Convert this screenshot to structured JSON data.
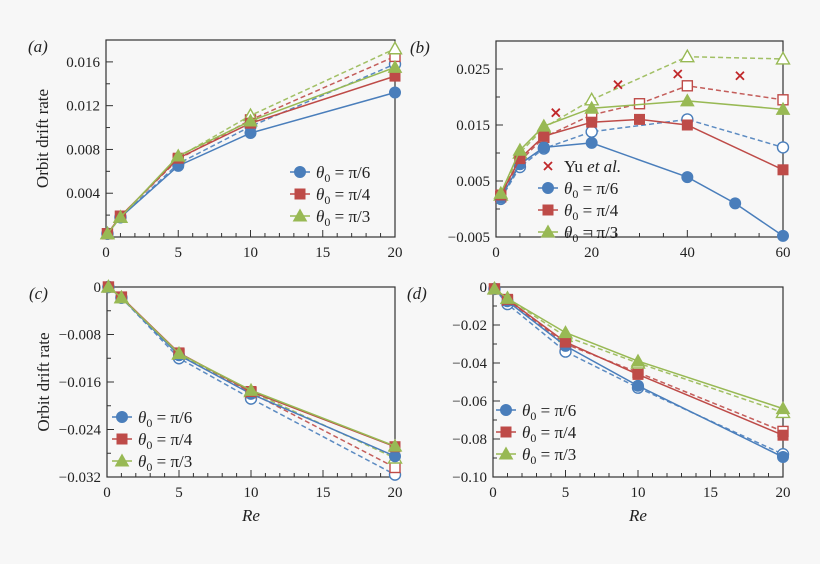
{
  "chart_data": [
    {
      "type": "line",
      "panel_label": "(a)",
      "ylabel": "Orbit drift rate",
      "xlabel": "",
      "xlim": [
        0,
        20
      ],
      "ylim": [
        0,
        0.018
      ],
      "xticks": [
        0,
        5,
        10,
        15,
        20
      ],
      "xtick_labels": [
        "0",
        "5",
        "10",
        "15",
        "20"
      ],
      "xminor": 1,
      "yticks": [
        0.004,
        0.008,
        0.012,
        0.016
      ],
      "ytick_labels": [
        "0.004",
        "0.008",
        "0.012",
        "0.016"
      ],
      "yminor": 0.002,
      "legend_position": "lower-right",
      "series": [
        {
          "theta": "pi6",
          "style": "dashed-open",
          "x": [
            0.1,
            1,
            5,
            10,
            20
          ],
          "y": [
            0.0003,
            0.0018,
            0.0067,
            0.0101,
            0.0158
          ]
        },
        {
          "theta": "pi4",
          "style": "dashed-open",
          "x": [
            0.1,
            1,
            5,
            10,
            20
          ],
          "y": [
            0.0003,
            0.0019,
            0.0071,
            0.0107,
            0.0165
          ]
        },
        {
          "theta": "pi3",
          "style": "dashed-open",
          "x": [
            0.1,
            1,
            5,
            10,
            20
          ],
          "y": [
            0.0003,
            0.0018,
            0.0073,
            0.0111,
            0.0172
          ]
        },
        {
          "theta": "pi6",
          "style": "solid-filled",
          "x": [
            0.1,
            1,
            5,
            10,
            20
          ],
          "y": [
            0.0003,
            0.0018,
            0.0065,
            0.0095,
            0.0132
          ]
        },
        {
          "theta": "pi4",
          "style": "solid-filled",
          "x": [
            0.1,
            1,
            5,
            10,
            20
          ],
          "y": [
            0.0003,
            0.0019,
            0.0072,
            0.0104,
            0.0147
          ]
        },
        {
          "theta": "pi3",
          "style": "solid-filled",
          "x": [
            0.1,
            1,
            5,
            10,
            20
          ],
          "y": [
            0.0003,
            0.0018,
            0.0074,
            0.0106,
            0.0155
          ]
        }
      ],
      "legend": [
        "pi6",
        "pi4",
        "pi3"
      ]
    },
    {
      "type": "line",
      "panel_label": "(b)",
      "ylabel": "",
      "xlabel": "",
      "xlim": [
        0,
        60
      ],
      "ylim": [
        -0.005,
        0.03
      ],
      "xticks": [
        0,
        20,
        40,
        60
      ],
      "xtick_labels": [
        "0",
        "20",
        "40",
        "60"
      ],
      "xminor": 5,
      "yticks": [
        -0.005,
        0.005,
        0.015,
        0.025
      ],
      "ytick_labels": [
        "−0.005",
        "0.005",
        "0.015",
        "0.025"
      ],
      "yminor": 0.005,
      "legend_position": "lower-left",
      "series": [
        {
          "theta": "pi6",
          "style": "dashed-open",
          "x": [
            1,
            5,
            10,
            20,
            40,
            60
          ],
          "y": [
            0.0018,
            0.0075,
            0.0108,
            0.0138,
            0.016,
            0.011
          ]
        },
        {
          "theta": "pi4",
          "style": "dashed-open",
          "x": [
            1,
            5,
            10,
            20,
            30,
            40,
            60
          ],
          "y": [
            0.0022,
            0.0085,
            0.0128,
            0.0168,
            0.0188,
            0.022,
            0.0195
          ]
        },
        {
          "theta": "pi3",
          "style": "dashed-open",
          "x": [
            1,
            5,
            10,
            20,
            40,
            60
          ],
          "y": [
            0.0025,
            0.01,
            0.0145,
            0.0195,
            0.0272,
            0.0268
          ]
        },
        {
          "theta": "pi6",
          "style": "solid-filled",
          "x": [
            1,
            5,
            10,
            20,
            40,
            50,
            60
          ],
          "y": [
            0.002,
            0.008,
            0.011,
            0.0118,
            0.0057,
            0.001,
            -0.0048
          ]
        },
        {
          "theta": "pi4",
          "style": "solid-filled",
          "x": [
            1,
            5,
            10,
            20,
            30,
            40,
            60
          ],
          "y": [
            0.0025,
            0.009,
            0.013,
            0.0155,
            0.016,
            0.015,
            0.007
          ]
        },
        {
          "theta": "pi3",
          "style": "solid-filled",
          "x": [
            1,
            5,
            10,
            20,
            40,
            60
          ],
          "y": [
            0.0028,
            0.0105,
            0.0148,
            0.018,
            0.0193,
            0.0178
          ]
        },
        {
          "theta": "yu",
          "style": "cross",
          "x": [
            12.5,
            25.5,
            38,
            51
          ],
          "y": [
            0.0172,
            0.0222,
            0.0241,
            0.0238
          ]
        }
      ],
      "legend": [
        "yu",
        "pi6",
        "pi4",
        "pi3"
      ]
    },
    {
      "type": "line",
      "panel_label": "(c)",
      "ylabel": "Orbit drift rate",
      "xlabel": "Re",
      "xlim": [
        0,
        20
      ],
      "ylim": [
        -0.032,
        0
      ],
      "xticks": [
        0,
        5,
        10,
        15,
        20
      ],
      "xtick_labels": [
        "0",
        "5",
        "10",
        "15",
        "20"
      ],
      "xminor": 1,
      "yticks": [
        -0.032,
        -0.024,
        -0.016,
        -0.008,
        0
      ],
      "ytick_labels": [
        "−0.032",
        "−0.024",
        "−0.016",
        "−0.008",
        "0"
      ],
      "yminor": 0.004,
      "legend_position": "lower-left",
      "series": [
        {
          "theta": "pi6",
          "style": "dashed-open",
          "x": [
            0.1,
            1,
            5,
            10,
            20
          ],
          "y": [
            0,
            -0.0018,
            -0.012,
            -0.0188,
            -0.0316
          ]
        },
        {
          "theta": "pi4",
          "style": "dashed-open",
          "x": [
            0.1,
            1,
            5,
            10,
            20
          ],
          "y": [
            0,
            -0.0017,
            -0.0113,
            -0.0178,
            -0.0304
          ]
        },
        {
          "theta": "pi3",
          "style": "dashed-open",
          "x": [
            0.1,
            1,
            5,
            10,
            20
          ],
          "y": [
            0,
            -0.0018,
            -0.0113,
            -0.0176,
            -0.0288
          ]
        },
        {
          "theta": "pi6",
          "style": "solid-filled",
          "x": [
            0.1,
            1,
            5,
            10,
            20
          ],
          "y": [
            0,
            -0.0018,
            -0.0115,
            -0.018,
            -0.0285
          ]
        },
        {
          "theta": "pi4",
          "style": "solid-filled",
          "x": [
            0.1,
            1,
            5,
            10,
            20
          ],
          "y": [
            0,
            -0.0017,
            -0.0111,
            -0.0176,
            -0.0269
          ]
        },
        {
          "theta": "pi3",
          "style": "solid-filled",
          "x": [
            0.1,
            1,
            5,
            10,
            20
          ],
          "y": [
            0,
            -0.0018,
            -0.0112,
            -0.0174,
            -0.0268
          ]
        }
      ],
      "legend": [
        "pi6",
        "pi4",
        "pi3"
      ]
    },
    {
      "type": "line",
      "panel_label": "(d)",
      "ylabel": "",
      "xlabel": "Re",
      "xlim": [
        0,
        20
      ],
      "ylim": [
        -0.1,
        0
      ],
      "xticks": [
        0,
        5,
        10,
        15,
        20
      ],
      "xtick_labels": [
        "0",
        "5",
        "10",
        "15",
        "20"
      ],
      "xminor": 1,
      "yticks": [
        -0.1,
        -0.08,
        -0.06,
        -0.04,
        -0.02,
        0
      ],
      "ytick_labels": [
        "−0.10",
        "−0.08",
        "−0.06",
        "−0.04",
        "−0.02",
        "0"
      ],
      "yminor": 0.01,
      "legend_position": "lower-left",
      "series": [
        {
          "theta": "pi6",
          "style": "dashed-open",
          "x": [
            0.1,
            1,
            5,
            10,
            20
          ],
          "y": [
            -0.001,
            -0.009,
            -0.034,
            -0.053,
            -0.088
          ]
        },
        {
          "theta": "pi4",
          "style": "dashed-open",
          "x": [
            0.1,
            1,
            5,
            10,
            20
          ],
          "y": [
            -0.001,
            -0.007,
            -0.03,
            -0.045,
            -0.076
          ]
        },
        {
          "theta": "pi3",
          "style": "dashed-open",
          "x": [
            0.1,
            1,
            5,
            10,
            20
          ],
          "y": [
            -0.001,
            -0.006,
            -0.026,
            -0.04,
            -0.066
          ]
        },
        {
          "theta": "pi6",
          "style": "solid-filled",
          "x": [
            0.1,
            1,
            5,
            10,
            20
          ],
          "y": [
            -0.001,
            -0.0075,
            -0.031,
            -0.052,
            -0.0895
          ]
        },
        {
          "theta": "pi4",
          "style": "solid-filled",
          "x": [
            0.1,
            1,
            5,
            10,
            20
          ],
          "y": [
            -0.001,
            -0.0065,
            -0.029,
            -0.046,
            -0.078
          ]
        },
        {
          "theta": "pi3",
          "style": "solid-filled",
          "x": [
            0.1,
            1,
            5,
            10,
            20
          ],
          "y": [
            -0.001,
            -0.006,
            -0.024,
            -0.039,
            -0.064
          ]
        }
      ],
      "legend": [
        "pi6",
        "pi4",
        "pi3"
      ]
    }
  ],
  "legend_entries": {
    "pi6": {
      "symbol": "θ",
      "sub": "0",
      "rest": " = π/6",
      "marker": "circle",
      "color": "#4a7ebb"
    },
    "pi4": {
      "symbol": "θ",
      "sub": "0",
      "rest": " = π/4",
      "marker": "square",
      "color": "#be4b48"
    },
    "pi3": {
      "symbol": "θ",
      "sub": "0",
      "rest": " = π/3",
      "marker": "triangle",
      "color": "#98b954"
    },
    "yu": {
      "symbol": "Yu ",
      "italic": "et al.",
      "marker": "cross",
      "color": "#c0282a"
    }
  }
}
